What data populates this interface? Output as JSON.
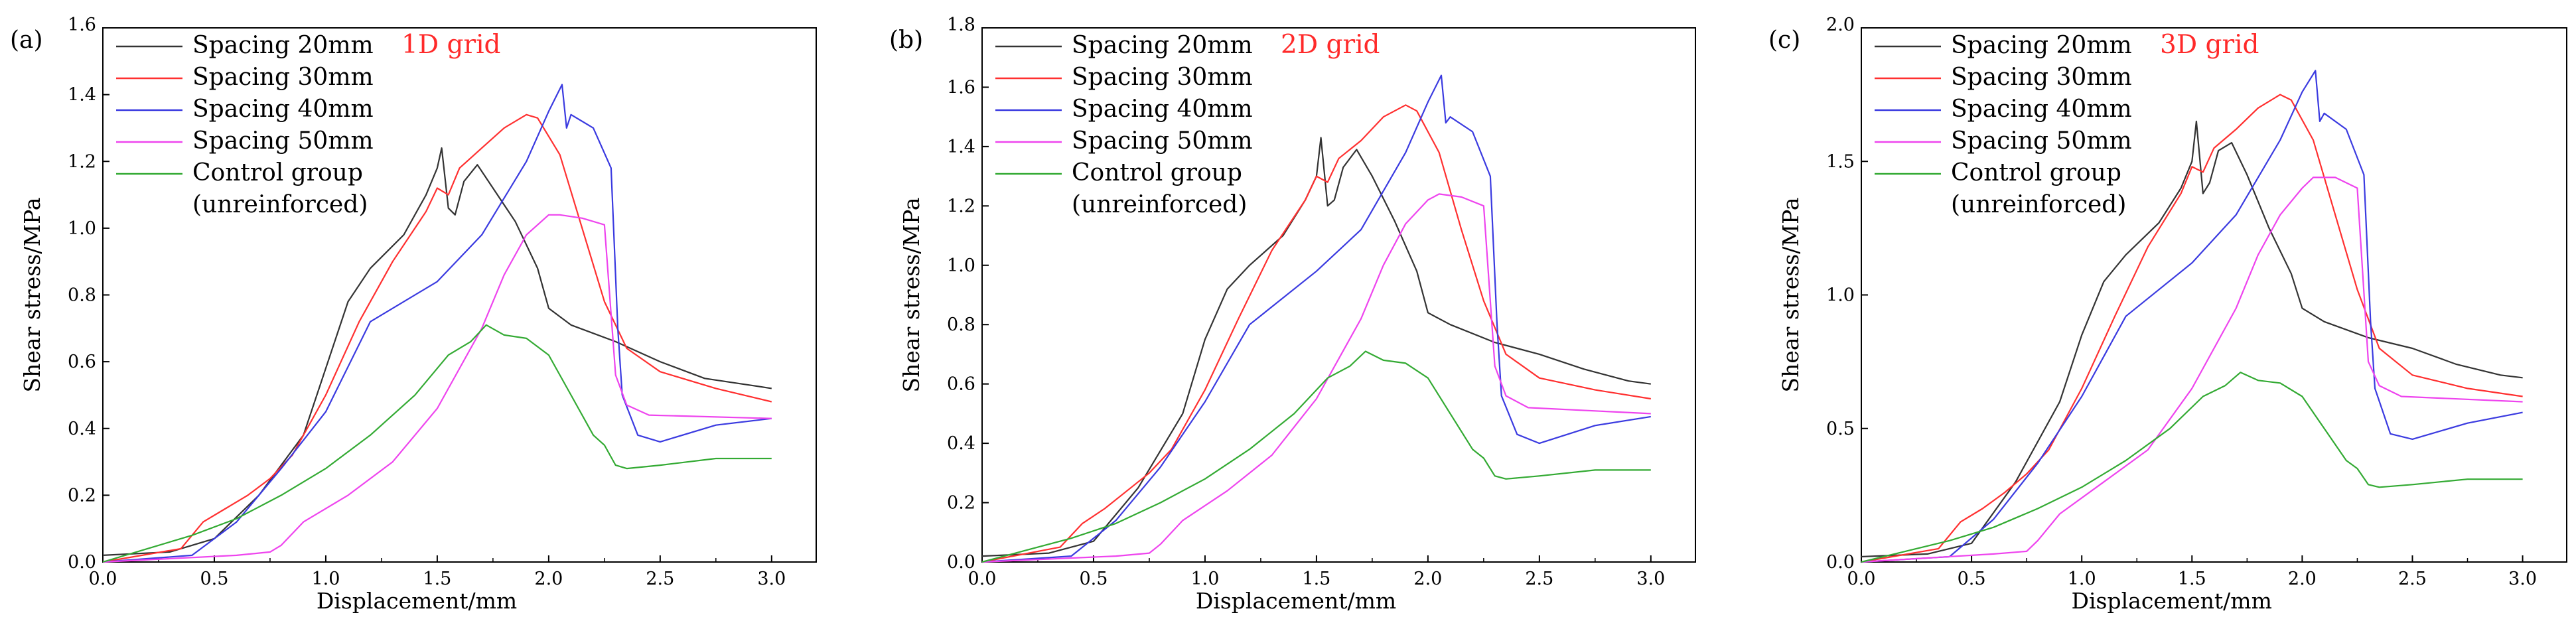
{
  "chart_data": [
    {
      "type": "line",
      "panel_label": "(a)",
      "title": "1D grid",
      "title_color": "#ff2a2a",
      "xlabel": "Displacement/mm",
      "ylabel": "Shear stress/MPa",
      "xlim": [
        0,
        3.2
      ],
      "ylim": [
        0,
        1.6
      ],
      "xticks": [
        "0.0",
        "0.5",
        "1.0",
        "1.5",
        "2.0",
        "2.5",
        "3.0"
      ],
      "yticks": [
        "0.0",
        "0.2",
        "0.4",
        "0.6",
        "0.8",
        "1.0",
        "1.2",
        "1.4",
        "1.6"
      ],
      "legend_title_note": "(unreinforced)",
      "series": [
        {
          "name": "Spacing 20mm",
          "color": "#333333",
          "x": [
            0,
            0.3,
            0.5,
            0.7,
            0.9,
            1.0,
            1.1,
            1.2,
            1.35,
            1.45,
            1.5,
            1.52,
            1.55,
            1.58,
            1.62,
            1.68,
            1.75,
            1.85,
            1.95,
            2.0,
            2.1,
            2.3,
            2.5,
            2.7,
            2.9,
            3.0
          ],
          "y": [
            0.02,
            0.03,
            0.07,
            0.2,
            0.38,
            0.58,
            0.78,
            0.88,
            0.98,
            1.1,
            1.18,
            1.24,
            1.06,
            1.04,
            1.14,
            1.19,
            1.12,
            1.02,
            0.88,
            0.76,
            0.71,
            0.66,
            0.6,
            0.55,
            0.53,
            0.52
          ]
        },
        {
          "name": "Spacing 30mm",
          "color": "#ff3030",
          "x": [
            0,
            0.35,
            0.45,
            0.55,
            0.65,
            0.75,
            0.85,
            1.0,
            1.15,
            1.3,
            1.45,
            1.5,
            1.55,
            1.6,
            1.7,
            1.8,
            1.9,
            1.95,
            2.05,
            2.15,
            2.25,
            2.35,
            2.5,
            2.75,
            3.0
          ],
          "y": [
            0,
            0.04,
            0.12,
            0.16,
            0.2,
            0.25,
            0.32,
            0.5,
            0.72,
            0.9,
            1.05,
            1.12,
            1.1,
            1.18,
            1.24,
            1.3,
            1.34,
            1.33,
            1.22,
            1.0,
            0.78,
            0.64,
            0.57,
            0.52,
            0.48
          ]
        },
        {
          "name": "Spacing 40mm",
          "color": "#3a3ae0",
          "x": [
            0,
            0.4,
            0.6,
            0.8,
            1.0,
            1.2,
            1.5,
            1.7,
            1.9,
            2.0,
            2.06,
            2.08,
            2.1,
            2.2,
            2.28,
            2.31,
            2.33,
            2.4,
            2.5,
            2.75,
            3.0
          ],
          "y": [
            0,
            0.02,
            0.12,
            0.28,
            0.45,
            0.72,
            0.84,
            0.98,
            1.2,
            1.35,
            1.43,
            1.3,
            1.34,
            1.3,
            1.18,
            0.7,
            0.5,
            0.38,
            0.36,
            0.41,
            0.43
          ]
        },
        {
          "name": "Spacing 50mm",
          "color": "#ee44ee",
          "x": [
            0,
            0.6,
            0.75,
            0.8,
            0.9,
            1.1,
            1.3,
            1.5,
            1.7,
            1.8,
            1.9,
            2.0,
            2.05,
            2.15,
            2.25,
            2.3,
            2.35,
            2.45,
            3.0
          ],
          "y": [
            0,
            0.02,
            0.03,
            0.05,
            0.12,
            0.2,
            0.3,
            0.46,
            0.7,
            0.86,
            0.98,
            1.04,
            1.04,
            1.03,
            1.01,
            0.56,
            0.47,
            0.44,
            0.43
          ]
        },
        {
          "name": "Control group",
          "color": "#33aa33",
          "x": [
            0,
            0.2,
            0.4,
            0.6,
            0.8,
            1.0,
            1.2,
            1.4,
            1.55,
            1.65,
            1.72,
            1.8,
            1.9,
            2.0,
            2.1,
            2.2,
            2.25,
            2.3,
            2.35,
            2.5,
            2.75,
            3.0
          ],
          "y": [
            0,
            0.04,
            0.08,
            0.13,
            0.2,
            0.28,
            0.38,
            0.5,
            0.62,
            0.66,
            0.71,
            0.68,
            0.67,
            0.62,
            0.5,
            0.38,
            0.35,
            0.29,
            0.28,
            0.29,
            0.31,
            0.31
          ]
        }
      ]
    },
    {
      "type": "line",
      "panel_label": "(b)",
      "title": "2D grid",
      "title_color": "#ff2a2a",
      "xlabel": "Displacement/mm",
      "ylabel": "Shear stress/MPa",
      "xlim": [
        0,
        3.2
      ],
      "ylim": [
        0,
        1.8
      ],
      "xticks": [
        "0.0",
        "0.5",
        "1.0",
        "1.5",
        "2.0",
        "2.5",
        "3.0"
      ],
      "yticks": [
        "0.0",
        "0.2",
        "0.4",
        "0.6",
        "0.8",
        "1.0",
        "1.2",
        "1.4",
        "1.6",
        "1.8"
      ],
      "legend_title_note": "(unreinforced)",
      "series": [
        {
          "name": "Spacing 20mm",
          "color": "#333333",
          "x": [
            0,
            0.3,
            0.5,
            0.7,
            0.9,
            1.0,
            1.1,
            1.2,
            1.35,
            1.45,
            1.5,
            1.52,
            1.55,
            1.58,
            1.62,
            1.68,
            1.75,
            1.85,
            1.95,
            2.0,
            2.1,
            2.3,
            2.5,
            2.7,
            2.9,
            3.0
          ],
          "y": [
            0.02,
            0.03,
            0.07,
            0.25,
            0.5,
            0.75,
            0.92,
            1.0,
            1.1,
            1.22,
            1.3,
            1.43,
            1.2,
            1.22,
            1.33,
            1.39,
            1.3,
            1.15,
            0.98,
            0.84,
            0.8,
            0.74,
            0.7,
            0.65,
            0.61,
            0.6
          ]
        },
        {
          "name": "Spacing 30mm",
          "color": "#ff3030",
          "x": [
            0,
            0.35,
            0.45,
            0.55,
            0.65,
            0.75,
            0.85,
            1.0,
            1.15,
            1.3,
            1.45,
            1.5,
            1.55,
            1.6,
            1.7,
            1.8,
            1.9,
            1.95,
            2.05,
            2.15,
            2.25,
            2.35,
            2.5,
            2.75,
            3.0
          ],
          "y": [
            0,
            0.05,
            0.13,
            0.18,
            0.24,
            0.3,
            0.38,
            0.58,
            0.82,
            1.05,
            1.22,
            1.3,
            1.28,
            1.36,
            1.42,
            1.5,
            1.54,
            1.52,
            1.38,
            1.12,
            0.88,
            0.7,
            0.62,
            0.58,
            0.55
          ]
        },
        {
          "name": "Spacing 40mm",
          "color": "#3a3ae0",
          "x": [
            0,
            0.4,
            0.6,
            0.8,
            1.0,
            1.2,
            1.5,
            1.7,
            1.9,
            2.0,
            2.06,
            2.08,
            2.1,
            2.2,
            2.28,
            2.31,
            2.33,
            2.4,
            2.5,
            2.75,
            3.0
          ],
          "y": [
            0,
            0.02,
            0.14,
            0.32,
            0.54,
            0.8,
            0.98,
            1.12,
            1.38,
            1.55,
            1.64,
            1.48,
            1.5,
            1.45,
            1.3,
            0.8,
            0.56,
            0.43,
            0.4,
            0.46,
            0.49
          ]
        },
        {
          "name": "Spacing 50mm",
          "color": "#ee44ee",
          "x": [
            0,
            0.6,
            0.75,
            0.8,
            0.9,
            1.1,
            1.3,
            1.5,
            1.7,
            1.8,
            1.9,
            2.0,
            2.05,
            2.15,
            2.25,
            2.3,
            2.35,
            2.45,
            3.0
          ],
          "y": [
            0,
            0.02,
            0.03,
            0.06,
            0.14,
            0.24,
            0.36,
            0.55,
            0.82,
            1.0,
            1.14,
            1.22,
            1.24,
            1.23,
            1.2,
            0.66,
            0.56,
            0.52,
            0.5
          ]
        },
        {
          "name": "Control group",
          "color": "#33aa33",
          "x": [
            0,
            0.2,
            0.4,
            0.6,
            0.8,
            1.0,
            1.2,
            1.4,
            1.55,
            1.65,
            1.72,
            1.8,
            1.9,
            2.0,
            2.1,
            2.2,
            2.25,
            2.3,
            2.35,
            2.5,
            2.75,
            3.0
          ],
          "y": [
            0,
            0.04,
            0.08,
            0.13,
            0.2,
            0.28,
            0.38,
            0.5,
            0.62,
            0.66,
            0.71,
            0.68,
            0.67,
            0.62,
            0.5,
            0.38,
            0.35,
            0.29,
            0.28,
            0.29,
            0.31,
            0.31
          ]
        }
      ]
    },
    {
      "type": "line",
      "panel_label": "(c)",
      "title": "3D grid",
      "title_color": "#ff2a2a",
      "xlabel": "Displacement/mm",
      "ylabel": "Shear stress/MPa",
      "xlim": [
        0,
        3.2
      ],
      "ylim": [
        0,
        2.0
      ],
      "xticks": [
        "0.0",
        "0.5",
        "1.0",
        "1.5",
        "2.0",
        "2.5",
        "3.0"
      ],
      "yticks": [
        "0.0",
        "0.5",
        "1.0",
        "1.5",
        "2.0"
      ],
      "legend_title_note": "(unreinforced)",
      "series": [
        {
          "name": "Spacing 20mm",
          "color": "#333333",
          "x": [
            0,
            0.3,
            0.5,
            0.7,
            0.9,
            1.0,
            1.1,
            1.2,
            1.35,
            1.45,
            1.5,
            1.52,
            1.55,
            1.58,
            1.62,
            1.68,
            1.75,
            1.85,
            1.95,
            2.0,
            2.1,
            2.3,
            2.5,
            2.7,
            2.9,
            3.0
          ],
          "y": [
            0.02,
            0.03,
            0.07,
            0.3,
            0.6,
            0.85,
            1.05,
            1.15,
            1.27,
            1.4,
            1.5,
            1.65,
            1.38,
            1.42,
            1.54,
            1.57,
            1.45,
            1.25,
            1.08,
            0.95,
            0.9,
            0.84,
            0.8,
            0.74,
            0.7,
            0.69
          ]
        },
        {
          "name": "Spacing 30mm",
          "color": "#ff3030",
          "x": [
            0,
            0.35,
            0.45,
            0.55,
            0.65,
            0.75,
            0.85,
            1.0,
            1.15,
            1.3,
            1.45,
            1.5,
            1.55,
            1.6,
            1.7,
            1.8,
            1.9,
            1.95,
            2.05,
            2.15,
            2.25,
            2.35,
            2.5,
            2.75,
            3.0
          ],
          "y": [
            0,
            0.05,
            0.15,
            0.2,
            0.26,
            0.33,
            0.42,
            0.65,
            0.92,
            1.18,
            1.38,
            1.48,
            1.46,
            1.55,
            1.62,
            1.7,
            1.75,
            1.73,
            1.58,
            1.3,
            1.02,
            0.8,
            0.7,
            0.65,
            0.62
          ]
        },
        {
          "name": "Spacing 40mm",
          "color": "#3a3ae0",
          "x": [
            0,
            0.4,
            0.6,
            0.8,
            1.0,
            1.2,
            1.5,
            1.7,
            1.9,
            2.0,
            2.06,
            2.08,
            2.1,
            2.2,
            2.28,
            2.31,
            2.33,
            2.4,
            2.5,
            2.75,
            3.0
          ],
          "y": [
            0,
            0.02,
            0.16,
            0.37,
            0.62,
            0.92,
            1.12,
            1.3,
            1.58,
            1.76,
            1.84,
            1.65,
            1.68,
            1.62,
            1.45,
            0.9,
            0.65,
            0.48,
            0.46,
            0.52,
            0.56
          ]
        },
        {
          "name": "Spacing 50mm",
          "color": "#ee44ee",
          "x": [
            0,
            0.6,
            0.75,
            0.8,
            0.9,
            1.1,
            1.3,
            1.5,
            1.7,
            1.8,
            1.9,
            2.0,
            2.05,
            2.15,
            2.25,
            2.3,
            2.35,
            2.45,
            3.0
          ],
          "y": [
            0,
            0.03,
            0.04,
            0.08,
            0.18,
            0.3,
            0.42,
            0.65,
            0.95,
            1.15,
            1.3,
            1.4,
            1.44,
            1.44,
            1.4,
            0.75,
            0.66,
            0.62,
            0.6
          ]
        },
        {
          "name": "Control group",
          "color": "#33aa33",
          "x": [
            0,
            0.2,
            0.4,
            0.6,
            0.8,
            1.0,
            1.2,
            1.4,
            1.55,
            1.65,
            1.72,
            1.8,
            1.9,
            2.0,
            2.1,
            2.2,
            2.25,
            2.3,
            2.35,
            2.5,
            2.75,
            3.0
          ],
          "y": [
            0,
            0.04,
            0.08,
            0.13,
            0.2,
            0.28,
            0.38,
            0.5,
            0.62,
            0.66,
            0.71,
            0.68,
            0.67,
            0.62,
            0.5,
            0.38,
            0.35,
            0.29,
            0.28,
            0.29,
            0.31,
            0.31
          ]
        }
      ]
    }
  ]
}
